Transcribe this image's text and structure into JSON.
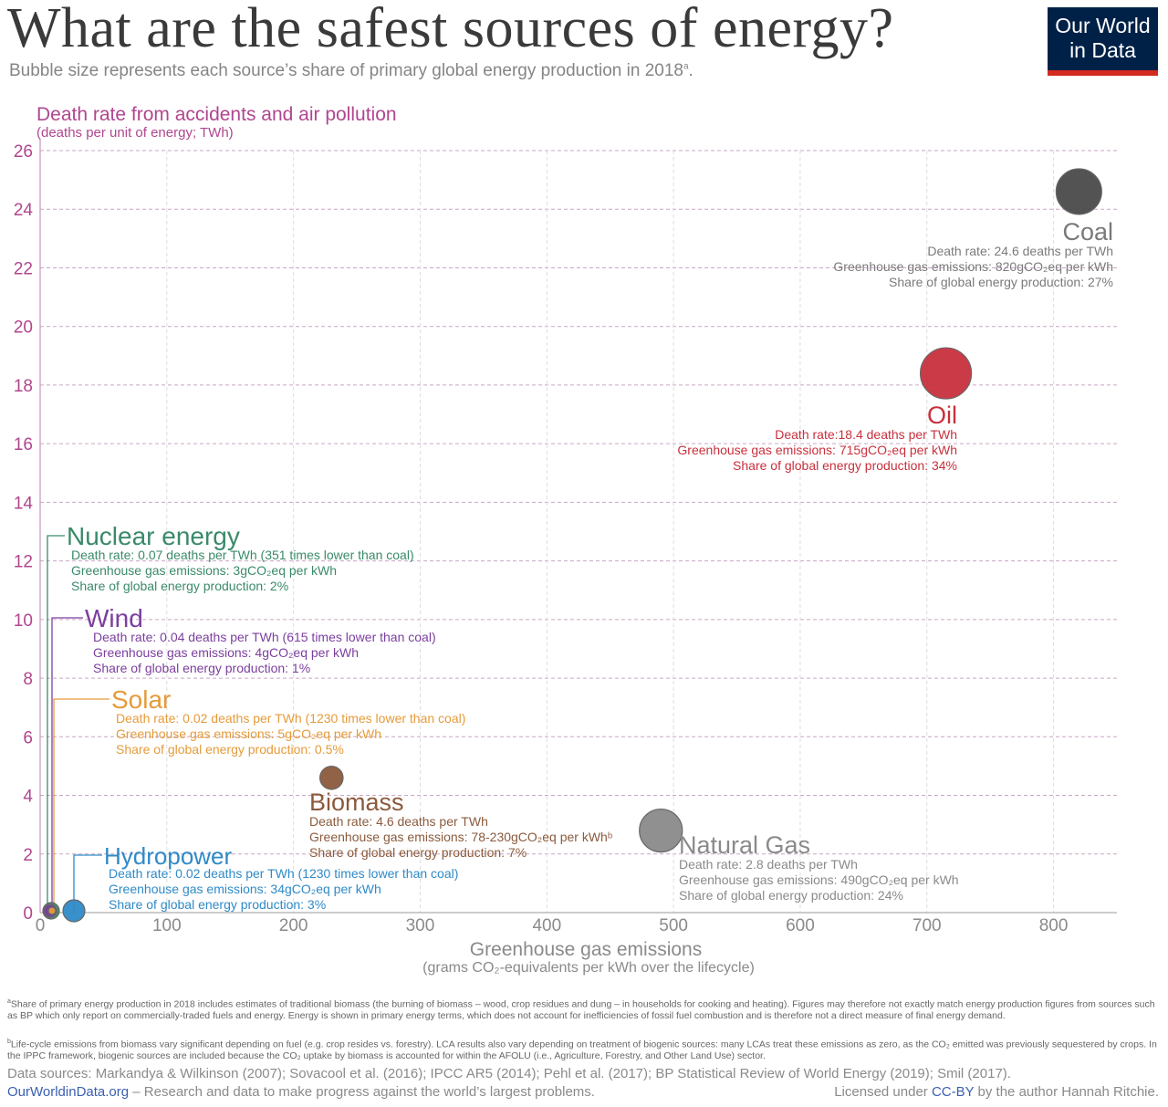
{
  "header": {
    "title": "What are the safest sources of energy?",
    "subtitle": "Bubble size represents each source’s share of primary global energy production in 2018",
    "subtitle_sup": "a",
    "subtitle_end": ".",
    "logo_line1": "Our World",
    "logo_line2": "in Data"
  },
  "colors": {
    "coal": "#4a4a4a",
    "oil": "#c8303d",
    "nuclear": "#3a8a6a",
    "wind": "#7b3f9e",
    "solar": "#e59b3a",
    "biomass": "#8b5a3c",
    "natural_gas": "#8a8a8a",
    "hydropower": "#2f8ac7",
    "y_axis": "#b0468f"
  },
  "chart_data": {
    "type": "scatter",
    "title": "What are the safest sources of energy?",
    "ylabel": "Death rate from accidents and air pollution",
    "ylabel_sub": "(deaths per unit of energy; TWh)",
    "xlabel": "Greenhouse gas emissions",
    "xlabel_sub": "(grams CO₂-equivalents per kWh over the lifecycle)",
    "xlim": [
      0,
      850
    ],
    "ylim": [
      0,
      26
    ],
    "x_ticks": [
      "0",
      "100",
      "200",
      "300",
      "400",
      "500",
      "600",
      "700",
      "800"
    ],
    "y_ticks": [
      "0",
      "2",
      "4",
      "6",
      "8",
      "10",
      "12",
      "14",
      "16",
      "18",
      "20",
      "22",
      "24",
      "26"
    ],
    "grid": true,
    "points": [
      {
        "id": "coal",
        "name": "Coal",
        "x": 820,
        "y": 24.6,
        "share": 27,
        "lines": [
          "Death rate: 24.6 deaths per TWh",
          "Greenhouse gas emissions: 820gCO₂eq per kWh",
          "Share of global energy production: 27%"
        ]
      },
      {
        "id": "oil",
        "name": "Oil",
        "x": 715,
        "y": 18.4,
        "share": 34,
        "lines": [
          "Death rate:18.4 deaths per TWh",
          "Greenhouse gas emissions: 715gCO₂eq per kWh",
          "Share of global energy production: 34%"
        ]
      },
      {
        "id": "nuclear",
        "name": "Nuclear energy",
        "x": 3,
        "y": 0.07,
        "share": 2,
        "lines": [
          "Death rate: 0.07 deaths per TWh (351 times lower than coal)",
          "Greenhouse gas emissions: 3gCO₂eq per kWh",
          "Share of global energy production: 2%"
        ]
      },
      {
        "id": "wind",
        "name": "Wind",
        "x": 4,
        "y": 0.04,
        "share": 1,
        "lines": [
          "Death rate: 0.04 deaths per TWh (615 times lower than coal)",
          "Greenhouse gas emissions: 4gCO₂eq per kWh",
          "Share of global energy production: 1%"
        ]
      },
      {
        "id": "solar",
        "name": "Solar",
        "x": 5,
        "y": 0.02,
        "share": 0.5,
        "lines": [
          "Death rate: 0.02 deaths per TWh (1230 times lower than coal)",
          "Greenhouse gas emissions: 5gCO₂eq per kWh",
          "Share of global energy production: 0.5%"
        ]
      },
      {
        "id": "biomass",
        "name": "Biomass",
        "x": 230,
        "y": 4.6,
        "share": 7,
        "lines": [
          "Death rate: 4.6 deaths per TWh",
          "Greenhouse gas emissions: 78-230gCO₂eq per kWhᵇ",
          "Share of global energy production: 7%"
        ]
      },
      {
        "id": "natural_gas",
        "name": "Natural Gas",
        "x": 490,
        "y": 2.8,
        "share": 24,
        "lines": [
          "Death rate: 2.8 deaths per TWh",
          "Greenhouse gas emissions: 490gCO₂eq per kWh",
          "Share of global energy production: 24%"
        ]
      },
      {
        "id": "hydropower",
        "name": "Hydropower",
        "x": 34,
        "y": 0.02,
        "share": 3,
        "lines": [
          "Death rate: 0.02 deaths per TWh (1230 times lower than coal)",
          "Greenhouse gas emissions: 34gCO₂eq per kWh",
          "Share of global energy production: 3%"
        ]
      }
    ]
  },
  "footer": {
    "note_a_sup": "a",
    "note_a": "Share of primary energy production in 2018 includes estimates of traditional biomass (the burning of biomass – wood, crop residues and dung – in households for cooking and heating). Figures may therefore not exactly match energy production figures from sources such as BP which only report on commercially-traded fuels and energy. Energy is shown in primary energy terms, which does not account for inefficiencies of fossil fuel combustion and is therefore not a direct measure of final energy demand.",
    "note_b_sup": "b",
    "note_b": "Life-cycle emissions from biomass vary significant depending on fuel (e.g. crop resides vs. forestry). LCA results also vary depending on treatment of biogenic sources: many LCAs treat these emissions as zero, as the CO₂ emitted was previously sequestered by crops. In the IPPC framework, biogenic sources are included because the CO₂ uptake by biomass is accounted for within the AFOLU (i.e., Agriculture, Forestry, and Other Land Use) sector.",
    "sources": "Data sources: Markandya & Wilkinson (2007); Sovacool et al. (2016); IPCC AR5 (2014); Pehl et al. (2017); BP Statistical Review of World Energy (2019); Smil (2017).",
    "owid_link": "OurWorldinData.org",
    "owid_text": " – Research and data to make progress against the world’s largest problems.",
    "license_prefix": "Licensed under ",
    "license_link": "CC-BY",
    "license_suffix": " by the author Hannah Ritchie."
  }
}
